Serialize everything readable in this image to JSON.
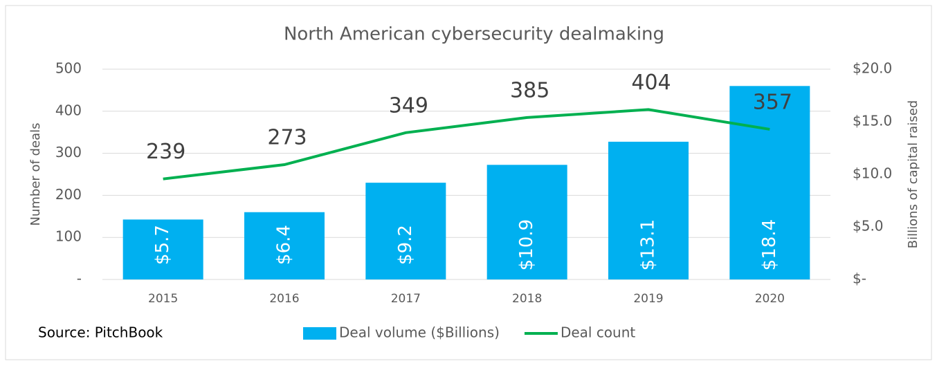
{
  "chart_data": {
    "type": "bar",
    "title": "North American cybersecurity dealmaking",
    "y_label": "Number of deals",
    "y2_label": "Billions of capital raised",
    "source": "Source: PitchBook",
    "categories": [
      "2015",
      "2016",
      "2017",
      "2018",
      "2019",
      "2020"
    ],
    "series": [
      {
        "name": "Deal volume ($Billions)",
        "type": "bar",
        "axis": "y2",
        "color": "#00b0f0",
        "values": [
          5.7,
          6.4,
          9.2,
          10.9,
          13.1,
          18.4
        ],
        "value_labels": [
          "$5.7",
          "$6.4",
          "$9.2",
          "$10.9",
          "$13.1",
          "$18.4"
        ]
      },
      {
        "name": "Deal count",
        "type": "line",
        "color": "#00b050",
        "values": [
          239,
          273,
          349,
          385,
          404,
          357
        ]
      }
    ],
    "ylim": [
      0,
      500
    ],
    "yticks": [
      {
        "value": 0,
        "label": "-"
      },
      100,
      200,
      300,
      400,
      500
    ],
    "y2lim": [
      0,
      20
    ],
    "y2ticks": [
      {
        "value": 0,
        "label": "$-"
      },
      {
        "value": 5,
        "label": "$5.0"
      },
      {
        "value": 10,
        "label": "$10.0"
      },
      {
        "value": 15,
        "label": "$15.0"
      },
      {
        "value": 20,
        "label": "$20.0"
      }
    ],
    "grid": true
  }
}
